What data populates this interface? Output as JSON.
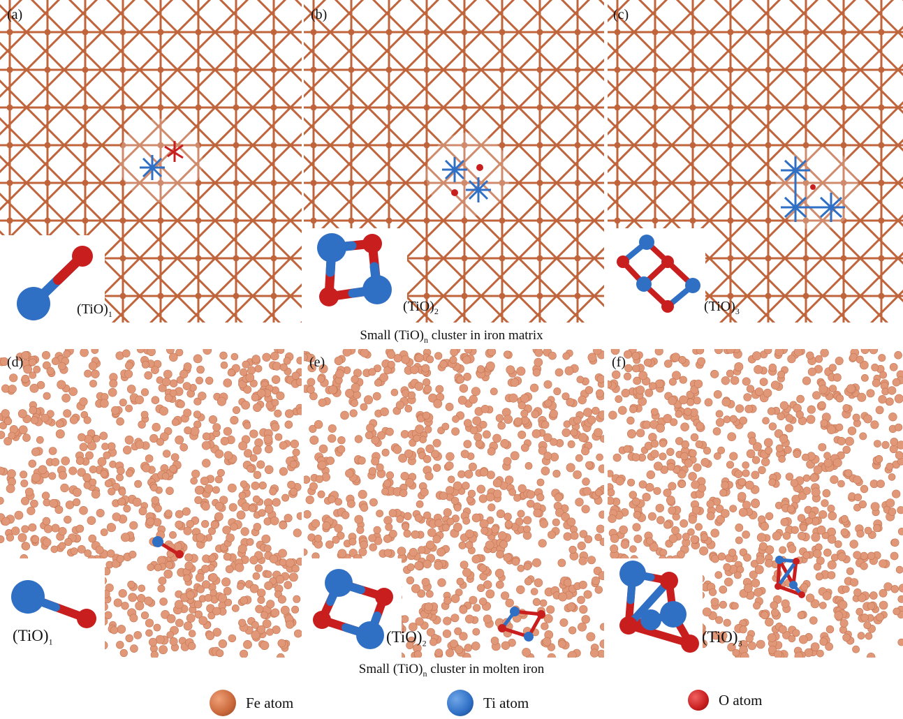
{
  "panels": [
    {
      "label": "(a)",
      "cluster_base": "(TiO)",
      "cluster_sub": "1"
    },
    {
      "label": "(b)",
      "cluster_base": "(TiO)",
      "cluster_sub": "2"
    },
    {
      "label": "(c)",
      "cluster_base": "(TiO)",
      "cluster_sub": "3"
    },
    {
      "label": "(d)",
      "cluster_base": "(TiO)",
      "cluster_sub": "1"
    },
    {
      "label": "(e)",
      "cluster_base": "(TiO)",
      "cluster_sub": "2"
    },
    {
      "label": "(f)",
      "cluster_base": "(TiO)",
      "cluster_sub": "3"
    }
  ],
  "captions": {
    "top": {
      "pre": "Small (TiO)",
      "sub": "n",
      "post": " cluster in iron matrix"
    },
    "bottom": {
      "pre": "Small (TiO)",
      "sub": "n",
      "post": " cluster in molten iron"
    }
  },
  "legend": [
    {
      "label": "Fe atom",
      "color": "#c8673a"
    },
    {
      "label": "Ti atom",
      "color": "#2f6fc4"
    },
    {
      "label": "O atom",
      "color": "#c81e1e"
    }
  ],
  "colors": {
    "fe_bond": "#c0643c",
    "fe_liquid": "#e19878",
    "ti": "#2f6fc4",
    "o": "#c81e1e"
  }
}
